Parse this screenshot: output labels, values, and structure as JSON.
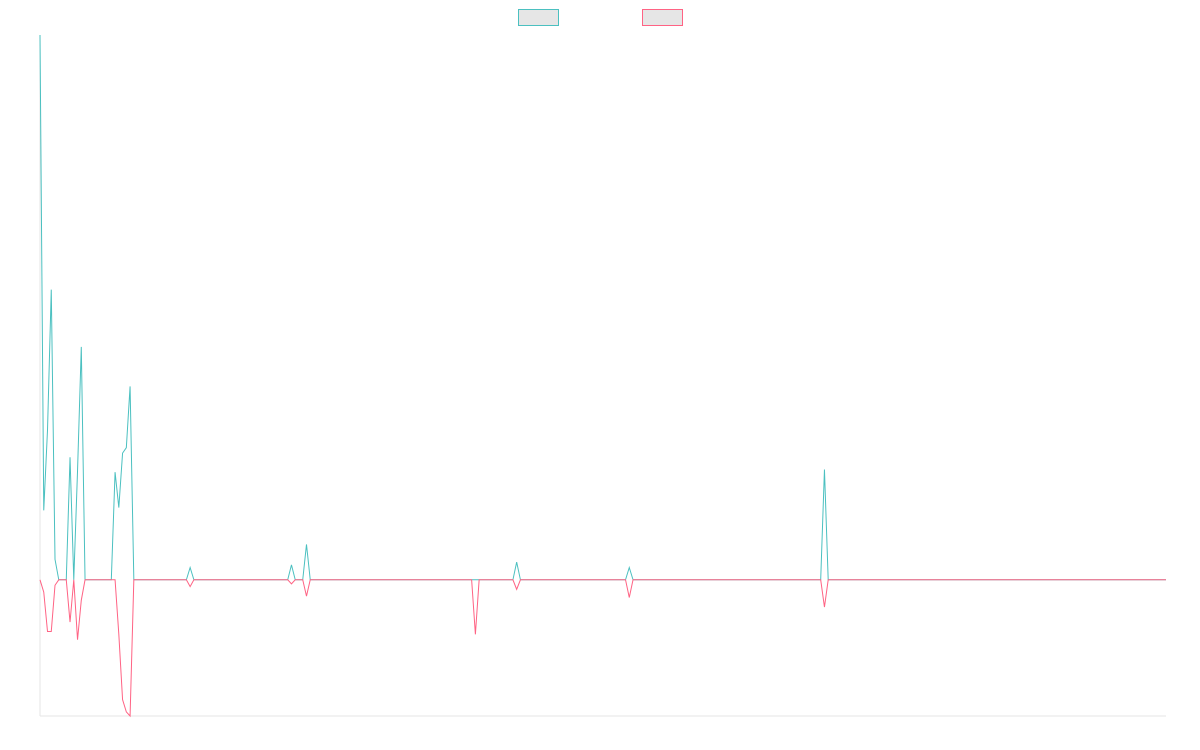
{
  "chart_data": {
    "type": "line",
    "x": [
      0,
      1,
      2,
      3,
      4,
      5,
      7,
      8,
      9,
      10,
      11,
      12,
      19,
      20,
      21,
      22,
      23,
      24,
      25,
      28,
      39,
      40,
      41,
      66,
      67,
      68,
      70,
      71,
      72,
      115,
      116,
      117,
      126,
      127,
      128,
      156,
      157,
      158,
      208,
      209,
      210,
      300
    ],
    "series": [
      {
        "color": "#4bc0c0",
        "values": [
          400,
          51,
          110,
          213,
          15,
          0,
          0,
          90,
          0,
          80,
          171,
          0,
          0,
          79,
          53,
          93,
          97,
          142,
          0,
          0,
          0,
          9,
          0,
          0,
          11,
          0,
          0,
          26,
          0,
          0,
          0,
          0,
          0,
          13,
          0,
          0,
          9,
          0,
          0,
          81,
          0,
          0
        ]
      },
      {
        "color": "#ff6384",
        "values": [
          0,
          -9,
          -38,
          -38,
          -4,
          0,
          0,
          -31,
          0,
          -44,
          -15,
          0,
          0,
          0,
          -40,
          -88,
          -97,
          -100,
          0,
          0,
          0,
          -5,
          0,
          0,
          -3,
          0,
          0,
          -12,
          0,
          0,
          -40,
          0,
          0,
          -7,
          0,
          0,
          -13,
          0,
          0,
          -20,
          0,
          0
        ]
      }
    ],
    "xlim": [
      0,
      300
    ],
    "ylim": [
      -100,
      400
    ],
    "legend": "top"
  }
}
